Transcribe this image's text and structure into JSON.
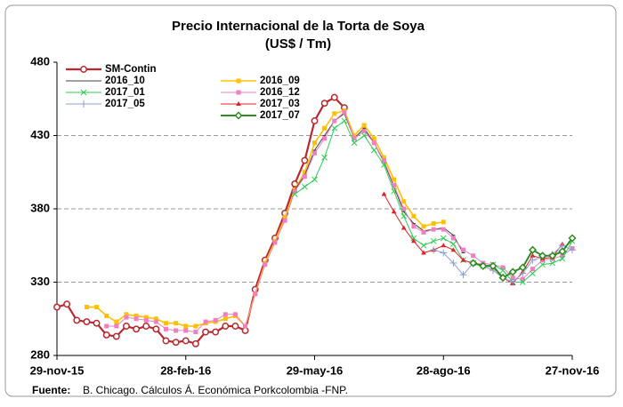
{
  "chart_data": {
    "type": "line",
    "title": "Precio Internacional de la Torta de Soya",
    "subtitle": "(US$ / Tm)",
    "source_label": "Fuente:",
    "source_text": "B. Chicago. Cálculos Á. Económica Porkcolombia  -FNP.",
    "categories": [
      "29-nov-15",
      null,
      null,
      null,
      null,
      null,
      null,
      null,
      null,
      null,
      null,
      null,
      null,
      "28-feb-16",
      null,
      null,
      null,
      null,
      null,
      null,
      null,
      null,
      null,
      null,
      null,
      null,
      "29-may-16",
      null,
      null,
      null,
      null,
      null,
      null,
      null,
      null,
      null,
      null,
      null,
      null,
      "28-ago-16",
      null,
      null,
      null,
      null,
      null,
      null,
      null,
      null,
      null,
      null,
      null,
      null,
      "27-nov-16"
    ],
    "ylim": [
      280,
      480
    ],
    "yticks": [
      280,
      330,
      380,
      430,
      480
    ],
    "grid": true,
    "series": [
      {
        "name": "SM-Contin",
        "color": "#b8282e",
        "marker": "circle",
        "width": 2.2,
        "values": [
          313,
          315,
          304,
          303,
          302,
          294,
          293,
          300,
          298,
          300,
          298,
          290,
          289,
          290,
          288,
          296,
          296,
          300,
          300,
          297,
          325,
          345,
          360,
          377,
          397,
          413,
          440,
          452,
          456,
          449,
          null,
          null,
          null,
          null,
          null,
          null,
          null,
          null,
          null,
          null,
          null,
          null,
          null,
          null,
          null,
          null,
          null,
          null,
          null,
          null,
          null,
          null,
          null
        ]
      },
      {
        "name": "2016_09",
        "color": "#ffc000",
        "marker": "square",
        "width": 1.6,
        "values": [
          null,
          null,
          null,
          313,
          313,
          307,
          303,
          308,
          307,
          306,
          305,
          302,
          302,
          300,
          300,
          302,
          303,
          305,
          307,
          300,
          322,
          343,
          358,
          374,
          393,
          405,
          425,
          435,
          445,
          447,
          430,
          437,
          428,
          415,
          400,
          385,
          375,
          368,
          370,
          371,
          null,
          null,
          null,
          null,
          null,
          null,
          null,
          null,
          null,
          null,
          null,
          null,
          null
        ]
      },
      {
        "name": "2016_10",
        "color": "#404040",
        "marker": "dash",
        "width": 1,
        "values": [
          null,
          null,
          null,
          null,
          null,
          null,
          null,
          null,
          null,
          null,
          null,
          null,
          null,
          null,
          null,
          null,
          null,
          null,
          null,
          null,
          null,
          null,
          null,
          null,
          393,
          403,
          420,
          430,
          440,
          445,
          428,
          435,
          425,
          412,
          395,
          378,
          370,
          365,
          366,
          367,
          362,
          350,
          null,
          null,
          null,
          null,
          null,
          null,
          null,
          null,
          null,
          null,
          null
        ]
      },
      {
        "name": "2016_12",
        "color": "#f07ec0",
        "marker": "square",
        "width": 1,
        "values": [
          null,
          null,
          null,
          null,
          null,
          300,
          300,
          306,
          305,
          304,
          303,
          298,
          297,
          297,
          296,
          303,
          304,
          308,
          308,
          300,
          322,
          342,
          357,
          372,
          392,
          402,
          418,
          428,
          440,
          446,
          428,
          433,
          425,
          413,
          396,
          380,
          368,
          364,
          366,
          366,
          360,
          352,
          348,
          343,
          342,
          340,
          333,
          332,
          339,
          345,
          346,
          348,
          353
        ]
      },
      {
        "name": "2017_01",
        "color": "#2ecc55",
        "marker": "x",
        "width": 1,
        "values": [
          null,
          null,
          null,
          null,
          null,
          null,
          null,
          null,
          null,
          null,
          null,
          null,
          null,
          null,
          null,
          null,
          null,
          null,
          null,
          null,
          null,
          null,
          null,
          null,
          390,
          395,
          400,
          415,
          435,
          440,
          425,
          430,
          420,
          410,
          392,
          375,
          360,
          355,
          358,
          360,
          356,
          345,
          343,
          341,
          342,
          338,
          330,
          330,
          336,
          342,
          343,
          346,
          358
        ]
      },
      {
        "name": "2017_03",
        "color": "#e0202a",
        "marker": "triangle",
        "width": 1,
        "values": [
          null,
          null,
          null,
          null,
          null,
          null,
          null,
          null,
          null,
          null,
          null,
          null,
          null,
          null,
          null,
          null,
          null,
          null,
          null,
          null,
          null,
          null,
          null,
          null,
          null,
          null,
          null,
          null,
          null,
          null,
          null,
          null,
          null,
          390,
          378,
          367,
          358,
          350,
          352,
          355,
          352,
          345,
          343,
          342,
          340,
          333,
          329,
          337,
          348,
          346,
          347,
          356,
          null
        ]
      },
      {
        "name": "2017_05",
        "color": "#8f9fd0",
        "marker": "plus",
        "width": 1,
        "values": [
          null,
          null,
          null,
          null,
          null,
          null,
          null,
          null,
          null,
          null,
          null,
          null,
          null,
          null,
          null,
          null,
          null,
          null,
          null,
          null,
          null,
          null,
          null,
          null,
          null,
          null,
          null,
          null,
          null,
          null,
          null,
          null,
          null,
          null,
          null,
          null,
          null,
          null,
          352,
          350,
          343,
          335,
          343,
          341,
          338,
          333,
          330,
          336,
          345,
          347,
          349,
          355,
          352
        ]
      },
      {
        "name": "2017_07",
        "color": "#2e8b22",
        "marker": "diamond",
        "width": 2,
        "values": [
          null,
          null,
          null,
          null,
          null,
          null,
          null,
          null,
          null,
          null,
          null,
          null,
          null,
          null,
          null,
          null,
          null,
          null,
          null,
          null,
          null,
          null,
          null,
          null,
          null,
          null,
          null,
          null,
          null,
          null,
          null,
          null,
          null,
          null,
          null,
          null,
          null,
          null,
          null,
          null,
          null,
          null,
          343,
          341,
          341,
          333,
          337,
          340,
          352,
          348,
          348,
          351,
          360
        ]
      }
    ]
  }
}
